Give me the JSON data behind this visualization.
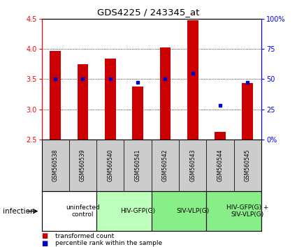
{
  "title": "GDS4225 / 243345_at",
  "samples": [
    "GSM560538",
    "GSM560539",
    "GSM560540",
    "GSM560541",
    "GSM560542",
    "GSM560543",
    "GSM560544",
    "GSM560545"
  ],
  "red_values": [
    3.97,
    3.75,
    3.84,
    3.38,
    4.02,
    4.47,
    2.63,
    3.43
  ],
  "blue_values": [
    50,
    50,
    50,
    47,
    50,
    55,
    28,
    47
  ],
  "ylim_left": [
    2.5,
    4.5
  ],
  "ylim_right": [
    0,
    100
  ],
  "yticks_left": [
    2.5,
    3.0,
    3.5,
    4.0,
    4.5
  ],
  "yticks_right": [
    0,
    25,
    50,
    75,
    100
  ],
  "bar_color": "#cc0000",
  "dot_color": "#0000cc",
  "bar_width": 0.4,
  "bar_bottom": 2.5,
  "sample_box_color": "#cccccc",
  "group_labels": [
    "uninfected\ncontrol",
    "HIV-GFP(G)",
    "SIV-VLP(G)",
    "HIV-GFP(G) +\nSIV-VLP(G)"
  ],
  "group_ranges": [
    [
      0,
      2
    ],
    [
      2,
      4
    ],
    [
      4,
      6
    ],
    [
      6,
      8
    ]
  ],
  "group_colors": [
    "#ffffff",
    "#bbffbb",
    "#88ee88",
    "#88ee88"
  ],
  "infection_label": "infection",
  "legend_red": "transformed count",
  "legend_blue": "percentile rank within the sample"
}
